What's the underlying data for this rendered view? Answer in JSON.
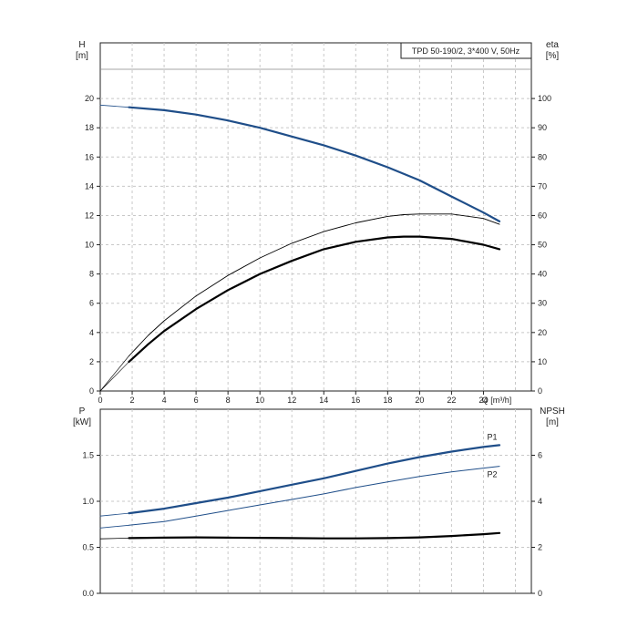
{
  "colors": {
    "blue": "#1f4e89",
    "black": "#000000",
    "grid": "#c8c8c8",
    "frame": "#222222"
  },
  "chart_data": [
    {
      "type": "line",
      "title": "TPD 50-190/2, 3*400 V, 50Hz",
      "xlabel": "Q [m³/h]",
      "ylabel_left_name": "H",
      "ylabel_left_unit": "[m]",
      "ylabel_right_name": "eta",
      "ylabel_right_unit": "[%]",
      "xlim": [
        0,
        27
      ],
      "ylim_left": [
        0,
        22
      ],
      "ylim_right": [
        0,
        110
      ],
      "x_ticks": [
        "0",
        "2",
        "4",
        "6",
        "8",
        "10",
        "12",
        "14",
        "16",
        "18",
        "20",
        "22",
        "24"
      ],
      "y_left_ticks": [
        "0",
        "2",
        "4",
        "6",
        "8",
        "10",
        "12",
        "14",
        "16",
        "18",
        "20"
      ],
      "y_right_ticks": [
        "0",
        "10",
        "20",
        "30",
        "40",
        "50",
        "60",
        "70",
        "80",
        "90",
        "100"
      ],
      "grid": true,
      "series": [
        {
          "axis": "left",
          "color": "blue",
          "width": 2.2,
          "x": [
            1.8,
            4,
            6,
            8,
            10,
            12,
            14,
            16,
            18,
            20,
            22,
            24,
            25
          ],
          "y": [
            19.4,
            19.2,
            18.9,
            18.5,
            18.0,
            17.4,
            16.8,
            16.1,
            15.3,
            14.4,
            13.3,
            12.2,
            11.6
          ]
        },
        {
          "axis": "left",
          "color": "blue",
          "width": 0.8,
          "x": [
            0,
            1.8
          ],
          "y": [
            19.55,
            19.4
          ]
        },
        {
          "axis": "right",
          "color": "black",
          "width": 0.9,
          "x": [
            1.8,
            3,
            4,
            6,
            8,
            10,
            12,
            14,
            16,
            18,
            19,
            20,
            22,
            24,
            25
          ],
          "y": [
            12.0,
            19.0,
            24.0,
            32.5,
            39.5,
            45.5,
            50.5,
            54.5,
            57.5,
            59.7,
            60.3,
            60.5,
            60.5,
            59.0,
            57.0
          ]
        },
        {
          "axis": "right",
          "color": "black",
          "width": 2.2,
          "x": [
            1.8,
            3,
            4,
            6,
            8,
            10,
            12,
            14,
            16,
            18,
            19,
            20,
            22,
            24,
            25
          ],
          "y": [
            10.0,
            16.0,
            20.5,
            28.0,
            34.5,
            40.0,
            44.5,
            48.5,
            51.0,
            52.5,
            52.8,
            52.8,
            52.0,
            50.0,
            48.5
          ]
        },
        {
          "axis": "right",
          "color": "black",
          "width": 0.6,
          "x": [
            0,
            1.8
          ],
          "y": [
            0,
            12.0
          ]
        },
        {
          "axis": "right",
          "color": "black",
          "width": 0.6,
          "x": [
            0,
            1.8
          ],
          "y": [
            0,
            10.0
          ]
        }
      ]
    },
    {
      "type": "line",
      "ylabel_left_name": "P",
      "ylabel_left_unit": "[kW]",
      "ylabel_right_name": "NPSH",
      "ylabel_right_unit": "[m]",
      "xlim": [
        0,
        27
      ],
      "ylim_left": [
        0,
        2.0
      ],
      "ylim_right": [
        0,
        8
      ],
      "y_left_ticks": [
        "0.0",
        "0.5",
        "1.0",
        "1.5"
      ],
      "y_right_ticks": [
        "0",
        "2",
        "4",
        "6"
      ],
      "grid": true,
      "series": [
        {
          "name": "P1",
          "axis": "left",
          "color": "blue",
          "width": 2.2,
          "x": [
            1.8,
            4,
            6,
            8,
            10,
            12,
            14,
            16,
            18,
            20,
            22,
            24,
            25
          ],
          "y": [
            0.87,
            0.92,
            0.98,
            1.04,
            1.11,
            1.18,
            1.25,
            1.33,
            1.41,
            1.48,
            1.54,
            1.59,
            1.61
          ]
        },
        {
          "axis": "left",
          "color": "blue",
          "width": 0.8,
          "x": [
            0,
            1.8
          ],
          "y": [
            0.84,
            0.87
          ]
        },
        {
          "name": "P2",
          "axis": "left",
          "color": "blue",
          "width": 1.0,
          "x": [
            1.8,
            4,
            6,
            8,
            10,
            12,
            14,
            16,
            18,
            20,
            22,
            24,
            25
          ],
          "y": [
            0.74,
            0.78,
            0.84,
            0.9,
            0.96,
            1.02,
            1.08,
            1.15,
            1.21,
            1.27,
            1.32,
            1.36,
            1.38
          ]
        },
        {
          "axis": "left",
          "color": "blue",
          "width": 0.8,
          "x": [
            0,
            1.8
          ],
          "y": [
            0.71,
            0.74
          ]
        },
        {
          "axis": "right",
          "color": "black",
          "width": 2.2,
          "x": [
            1.8,
            4,
            6,
            8,
            10,
            12,
            14,
            16,
            18,
            20,
            22,
            24,
            25
          ],
          "y": [
            2.4,
            2.42,
            2.43,
            2.42,
            2.41,
            2.4,
            2.39,
            2.39,
            2.4,
            2.43,
            2.49,
            2.57,
            2.62
          ]
        },
        {
          "axis": "right",
          "color": "black",
          "width": 0.8,
          "x": [
            0,
            1.8
          ],
          "y": [
            2.37,
            2.4
          ]
        }
      ]
    }
  ]
}
